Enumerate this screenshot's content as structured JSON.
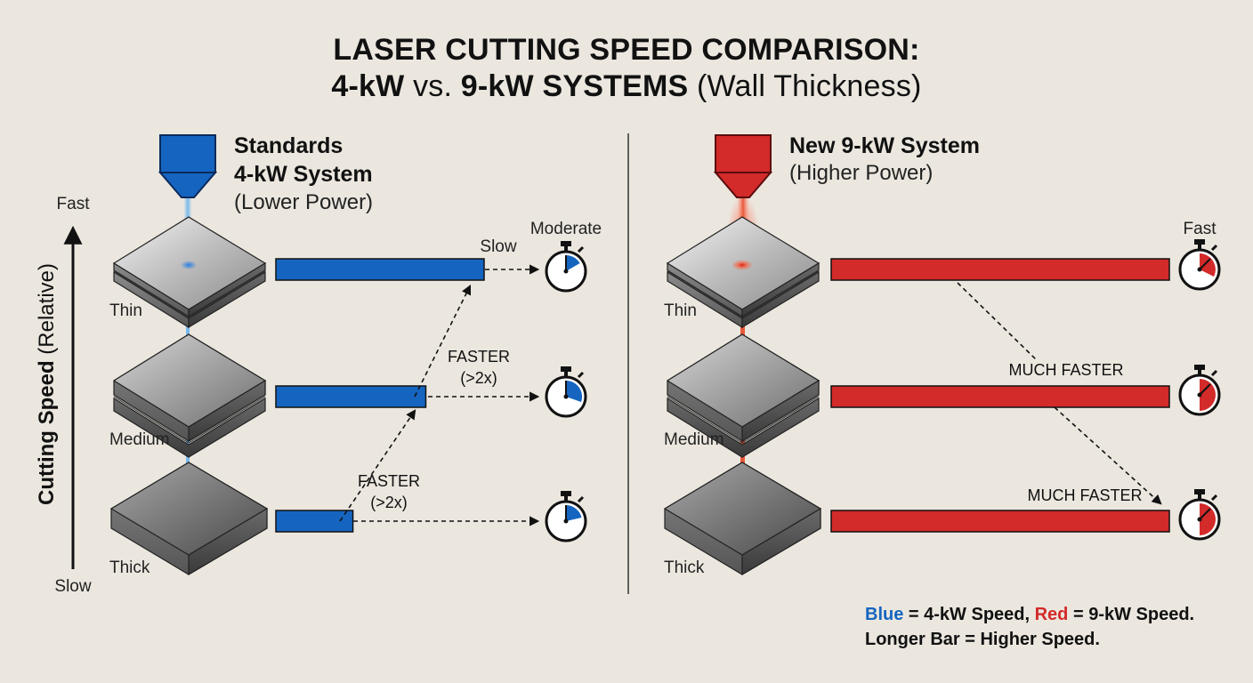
{
  "title": {
    "line1": "LASER CUTTING SPEED COMPARISON:",
    "line2_a": "4-kW",
    "line2_b": " vs. ",
    "line2_c": "9-kW SYSTEMS",
    "line2_d": " (Wall Thickness)"
  },
  "axis": {
    "label_bold": "Cutting Speed",
    "label_light": " (Relative)",
    "top": "Fast",
    "bottom": "Slow"
  },
  "colors": {
    "blue": "#1565c0",
    "red": "#d32a2a",
    "background": "#ebe7df"
  },
  "left_panel": {
    "head_line1": "Standards",
    "head_line2": "4-kW System",
    "sub": "(Lower Power)",
    "thickness_labels": [
      "Thin",
      "Medium",
      "Thick"
    ],
    "speed_labels": [
      "Moderate",
      "Slow"
    ],
    "annotations": [
      {
        "line1": "FASTER",
        "line2": "(>2x)"
      },
      {
        "line1": "FASTER",
        "line2": "(>2x)"
      }
    ],
    "bar_speeds": [
      1.0,
      0.72,
      0.37
    ]
  },
  "right_panel": {
    "head_line1": "New 9-kW System",
    "sub": "(Higher Power)",
    "thickness_labels": [
      "Thin",
      "Medium",
      "Thick"
    ],
    "speed_label": "Fast",
    "annotations": [
      "MUCH FASTER",
      "MUCH FASTER"
    ],
    "bar_speeds": [
      1.0,
      1.0,
      1.0
    ]
  },
  "legend": {
    "blue_word": "Blue",
    "blue_rest": " = 4-kW Speed, ",
    "red_word": "Red",
    "red_rest": " = 9-kW Speed.",
    "line2": "Longer Bar = Higher Speed."
  }
}
